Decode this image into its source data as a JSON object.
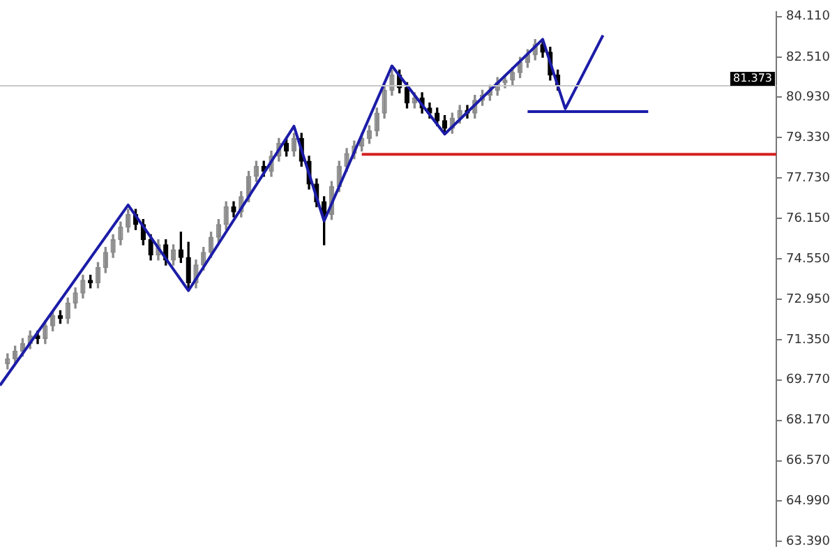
{
  "chart_data": {
    "type": "candlestick",
    "tick_labels": "y",
    "ylim": [
      63.2,
      84.3
    ],
    "yticks": [
      {
        "value": 84.11,
        "label": "84.110"
      },
      {
        "value": 82.51,
        "label": "82.510"
      },
      {
        "value": 80.93,
        "label": "80.930"
      },
      {
        "value": 79.33,
        "label": "79.330"
      },
      {
        "value": 77.73,
        "label": "77.730"
      },
      {
        "value": 76.15,
        "label": "76.150"
      },
      {
        "value": 74.55,
        "label": "74.550"
      },
      {
        "value": 72.95,
        "label": "72.950"
      },
      {
        "value": 71.35,
        "label": "71.350"
      },
      {
        "value": 69.77,
        "label": "69.770"
      },
      {
        "value": 68.17,
        "label": "68.170"
      },
      {
        "value": 66.57,
        "label": "66.570"
      },
      {
        "value": 64.99,
        "label": "64.990"
      },
      {
        "value": 63.39,
        "label": "63.390"
      }
    ],
    "categories": [
      null,
      null,
      null,
      null,
      null,
      null,
      null,
      null,
      null,
      null,
      null,
      null,
      null,
      null,
      null,
      null,
      null,
      null,
      null,
      null,
      null,
      null,
      null,
      null,
      null,
      null,
      null,
      null,
      null,
      null,
      null,
      null,
      null,
      null,
      null,
      null,
      null,
      null,
      null,
      null,
      null,
      null,
      null,
      null,
      null,
      null,
      null,
      null,
      null,
      null,
      null,
      null,
      null,
      null,
      null,
      null,
      null,
      null,
      null,
      null,
      null,
      null,
      null,
      null,
      null,
      null,
      null,
      null,
      null,
      null,
      null,
      null,
      null,
      null,
      null,
      null,
      null,
      null,
      null,
      null,
      null,
      null,
      null,
      null,
      null,
      null,
      null,
      null,
      null,
      null,
      null,
      null,
      null,
      null,
      null,
      null,
      null,
      null,
      null,
      null,
      null,
      null,
      null,
      null
    ],
    "ohlc": [
      null,
      [
        70.4,
        70.8,
        70.2,
        70.6
      ],
      [
        70.6,
        71.1,
        70.4,
        70.9
      ],
      [
        70.9,
        71.4,
        70.7,
        71.2
      ],
      [
        71.2,
        71.7,
        71.0,
        71.5
      ],
      [
        71.5,
        71.7,
        71.2,
        71.4
      ],
      [
        71.4,
        72.1,
        71.2,
        71.9
      ],
      [
        71.9,
        72.5,
        71.7,
        72.3
      ],
      [
        72.3,
        72.5,
        72.0,
        72.2
      ],
      [
        72.2,
        73.0,
        72.0,
        72.8
      ],
      [
        72.8,
        73.4,
        72.6,
        73.2
      ],
      [
        73.2,
        73.9,
        73.0,
        73.7
      ],
      [
        73.7,
        73.9,
        73.4,
        73.6
      ],
      [
        73.6,
        74.4,
        73.4,
        74.2
      ],
      [
        74.2,
        75.0,
        74.0,
        74.8
      ],
      [
        74.8,
        75.5,
        74.6,
        75.3
      ],
      [
        75.3,
        76.0,
        75.1,
        75.8
      ],
      [
        75.8,
        76.5,
        75.6,
        76.3
      ],
      [
        76.3,
        76.5,
        75.7,
        75.9
      ],
      [
        75.9,
        76.1,
        75.1,
        75.3
      ],
      [
        75.3,
        75.5,
        74.5,
        74.7
      ],
      [
        74.7,
        75.3,
        74.5,
        75.1
      ],
      [
        75.1,
        75.3,
        74.3,
        74.5
      ],
      [
        74.5,
        75.1,
        74.3,
        74.9
      ],
      [
        74.9,
        75.6,
        74.4,
        74.6
      ],
      [
        74.6,
        75.2,
        73.4,
        73.6
      ],
      [
        73.6,
        74.5,
        73.4,
        74.3
      ],
      [
        74.3,
        75.0,
        74.1,
        74.8
      ],
      [
        74.8,
        75.6,
        74.6,
        75.4
      ],
      [
        75.4,
        76.1,
        75.2,
        75.9
      ],
      [
        75.9,
        76.8,
        75.7,
        76.6
      ],
      [
        76.6,
        76.8,
        76.2,
        76.4
      ],
      [
        76.4,
        77.2,
        76.2,
        77.0
      ],
      [
        77.0,
        78.0,
        76.8,
        77.8
      ],
      [
        77.8,
        78.4,
        77.6,
        78.2
      ],
      [
        78.2,
        78.4,
        77.8,
        78.0
      ],
      [
        78.0,
        78.8,
        77.8,
        78.6
      ],
      [
        78.6,
        79.3,
        78.4,
        79.1
      ],
      [
        79.1,
        79.3,
        78.6,
        78.8
      ],
      [
        78.8,
        79.5,
        78.6,
        79.3
      ],
      [
        79.3,
        79.5,
        78.2,
        78.4
      ],
      [
        78.4,
        78.6,
        77.3,
        77.5
      ],
      [
        77.5,
        77.7,
        76.6,
        76.8
      ],
      [
        76.8,
        77.0,
        75.1,
        76.3
      ],
      [
        76.3,
        77.6,
        76.1,
        77.4
      ],
      [
        77.4,
        78.4,
        77.2,
        78.2
      ],
      [
        78.2,
        78.9,
        78.0,
        78.7
      ],
      [
        78.7,
        79.2,
        78.5,
        79.0
      ],
      [
        79.0,
        79.5,
        78.8,
        79.3
      ],
      [
        79.3,
        79.8,
        79.1,
        79.6
      ],
      [
        79.6,
        80.5,
        79.4,
        80.3
      ],
      [
        80.3,
        81.4,
        80.1,
        81.2
      ],
      [
        81.2,
        82.0,
        81.0,
        81.8
      ],
      [
        81.8,
        82.0,
        81.1,
        81.3
      ],
      [
        81.3,
        81.5,
        80.5,
        80.7
      ],
      [
        80.7,
        81.1,
        80.5,
        80.9
      ],
      [
        80.9,
        81.1,
        80.3,
        80.5
      ],
      [
        80.5,
        80.7,
        80.1,
        80.3
      ],
      [
        80.3,
        80.5,
        79.8,
        80.0
      ],
      [
        80.0,
        80.2,
        79.5,
        79.7
      ],
      [
        79.7,
        80.3,
        79.5,
        80.1
      ],
      [
        80.1,
        80.6,
        79.9,
        80.4
      ],
      [
        80.4,
        80.6,
        80.1,
        80.3
      ],
      [
        80.3,
        81.0,
        80.1,
        80.8
      ],
      [
        80.8,
        81.2,
        80.6,
        81.0
      ],
      [
        81.0,
        81.4,
        80.8,
        81.2
      ],
      [
        81.2,
        81.7,
        81.0,
        81.5
      ],
      [
        81.5,
        81.8,
        81.3,
        81.6
      ],
      [
        81.6,
        82.1,
        81.4,
        81.9
      ],
      [
        81.9,
        82.5,
        81.7,
        82.3
      ],
      [
        82.3,
        82.8,
        82.1,
        82.6
      ],
      [
        82.6,
        83.2,
        82.4,
        83.0
      ],
      [
        83.0,
        83.1,
        82.5,
        82.7
      ],
      [
        82.7,
        82.9,
        81.6,
        81.8
      ],
      [
        81.8,
        82.0,
        81.2,
        81.37
      ],
      null,
      null,
      null,
      null,
      null,
      null,
      null,
      null,
      null,
      null,
      null,
      null,
      null,
      null,
      null,
      null,
      null,
      null,
      null,
      null,
      null,
      null,
      null,
      null,
      null,
      null,
      null,
      null,
      null
    ],
    "ref_lines": [
      {
        "axis": "y",
        "value": 81.373,
        "label": "81.373",
        "color": "#c8c8c8"
      }
    ],
    "series": [
      {
        "type": "line",
        "color": "#1c1ca8",
        "values": [
          69.55,
          null,
          null,
          null,
          null,
          null,
          null,
          null,
          null,
          null,
          null,
          null,
          null,
          null,
          null,
          null,
          null,
          76.67,
          null,
          null,
          null,
          null,
          null,
          null,
          null,
          73.29,
          null,
          null,
          null,
          null,
          null,
          null,
          null,
          null,
          null,
          null,
          null,
          null,
          null,
          79.78,
          null,
          null,
          null,
          76.04,
          null,
          null,
          null,
          null,
          null,
          null,
          null,
          null,
          82.16,
          null,
          null,
          null,
          null,
          null,
          null,
          79.47,
          null,
          null,
          null,
          null,
          null,
          null,
          null,
          null,
          null,
          null,
          null,
          null,
          83.21,
          null,
          null,
          80.47,
          null,
          null,
          null,
          null,
          83.37,
          null,
          null,
          null,
          null,
          null,
          null,
          null,
          null,
          null,
          null,
          null,
          null,
          null,
          null,
          null,
          null,
          null,
          null,
          null,
          null,
          null,
          null,
          null
        ]
      },
      {
        "type": "line",
        "color": "#1c1ca8",
        "values": [
          null,
          null,
          null,
          null,
          null,
          null,
          null,
          null,
          null,
          null,
          null,
          null,
          null,
          null,
          null,
          null,
          null,
          null,
          null,
          null,
          null,
          null,
          null,
          null,
          null,
          null,
          null,
          null,
          null,
          null,
          null,
          null,
          null,
          null,
          null,
          null,
          null,
          null,
          null,
          null,
          null,
          null,
          null,
          null,
          null,
          null,
          null,
          null,
          null,
          null,
          null,
          null,
          null,
          null,
          null,
          null,
          null,
          null,
          null,
          null,
          null,
          null,
          null,
          null,
          null,
          null,
          null,
          null,
          null,
          null,
          80.36,
          null,
          null,
          null,
          null,
          null,
          null,
          null,
          null,
          null,
          null,
          null,
          null,
          null,
          null,
          null,
          80.36,
          null,
          null,
          null,
          null,
          null,
          null,
          null,
          null,
          null,
          null,
          null,
          null,
          null,
          null,
          null,
          null,
          null
        ]
      },
      {
        "type": "line",
        "color": "#d42020",
        "values": [
          null,
          null,
          null,
          null,
          null,
          null,
          null,
          null,
          null,
          null,
          null,
          null,
          null,
          null,
          null,
          null,
          null,
          null,
          null,
          null,
          null,
          null,
          null,
          null,
          null,
          null,
          null,
          null,
          null,
          null,
          null,
          null,
          null,
          null,
          null,
          null,
          null,
          null,
          null,
          null,
          null,
          null,
          null,
          null,
          null,
          null,
          null,
          null,
          78.67,
          null,
          null,
          null,
          null,
          null,
          null,
          null,
          null,
          null,
          null,
          null,
          null,
          null,
          null,
          null,
          null,
          null,
          null,
          null,
          null,
          null,
          null,
          null,
          null,
          null,
          null,
          null,
          null,
          null,
          null,
          null,
          null,
          null,
          null,
          null,
          null,
          null,
          null,
          null,
          null,
          null,
          null,
          null,
          null,
          null,
          null,
          null,
          null,
          null,
          null,
          null,
          null,
          null,
          null,
          78.67
        ]
      }
    ]
  }
}
